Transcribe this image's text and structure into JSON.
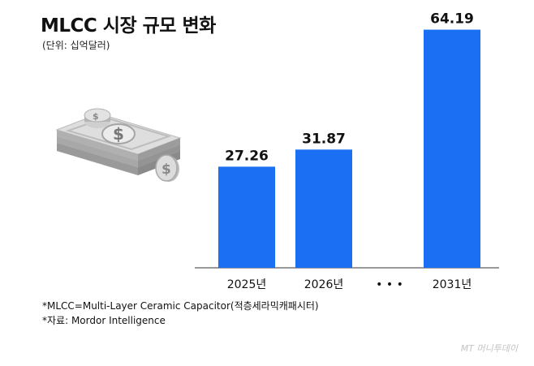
{
  "title": "MLCC 시장 규모 변화",
  "unit_label": "(단위: 십억달러)",
  "chart_data": {
    "type": "bar",
    "categories": [
      "2025년",
      "2026년",
      "• • •",
      "2031년"
    ],
    "values": [
      27.26,
      31.87,
      null,
      64.19
    ],
    "value_labels": [
      "27.26",
      "31.87",
      "",
      "64.19"
    ],
    "ylim": [
      0,
      70
    ],
    "grid": false,
    "bar_color": "#1a6ff2"
  },
  "footnotes": [
    "*MLCC=Multi-Layer Ceramic Capacitor(적층세라믹캐패시터)",
    "*자료: Mordor Intelligence"
  ],
  "credit": "MT 머니투데이"
}
